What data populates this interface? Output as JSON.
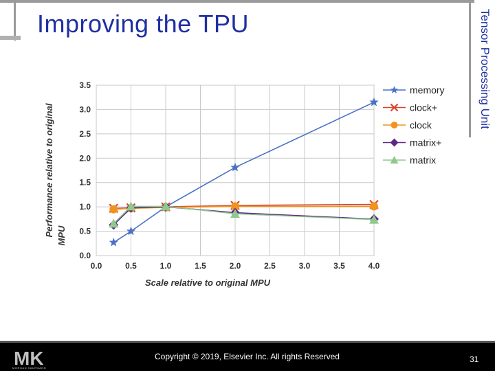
{
  "slide": {
    "title": "Improving the TPU",
    "side_label": "Tensor Processing Unit",
    "copyright": "Copyright © 2019, Elsevier Inc. All rights Reserved",
    "page_number": "31",
    "logo_text": "MK",
    "logo_subtext": "MORGAN KAUFMANN"
  },
  "chart_data": {
    "type": "line",
    "title": "",
    "xlabel": "Scale relative to original MPU",
    "ylabel": "Performance relative to original MPU",
    "x": [
      0.25,
      0.5,
      1.0,
      2.0,
      4.0
    ],
    "x_ticks": [
      0.0,
      0.5,
      1.0,
      1.5,
      2.0,
      2.5,
      3.0,
      3.5,
      4.0
    ],
    "y_ticks": [
      0.0,
      0.5,
      1.0,
      1.5,
      2.0,
      2.5,
      3.0,
      3.5
    ],
    "xlim": [
      0,
      4
    ],
    "ylim": [
      0,
      3.5
    ],
    "grid": true,
    "legend_position": "top-right",
    "series": [
      {
        "name": "memory",
        "color": "#4a72c4",
        "marker": "star",
        "values": [
          0.27,
          0.5,
          1.0,
          1.81,
          3.15
        ]
      },
      {
        "name": "clock+",
        "color": "#d9442a",
        "marker": "x",
        "values": [
          0.97,
          0.98,
          1.0,
          1.03,
          1.05
        ]
      },
      {
        "name": "clock",
        "color": "#f0941e",
        "marker": "circle",
        "values": [
          0.95,
          0.97,
          0.99,
          1.01,
          1.01
        ]
      },
      {
        "name": "matrix+",
        "color": "#5b2a86",
        "marker": "diamond",
        "values": [
          0.63,
          0.98,
          1.0,
          0.88,
          0.75
        ]
      },
      {
        "name": "matrix",
        "color": "#8fc98c",
        "marker": "triangle",
        "values": [
          0.66,
          1.01,
          1.01,
          0.86,
          0.74
        ]
      }
    ]
  }
}
